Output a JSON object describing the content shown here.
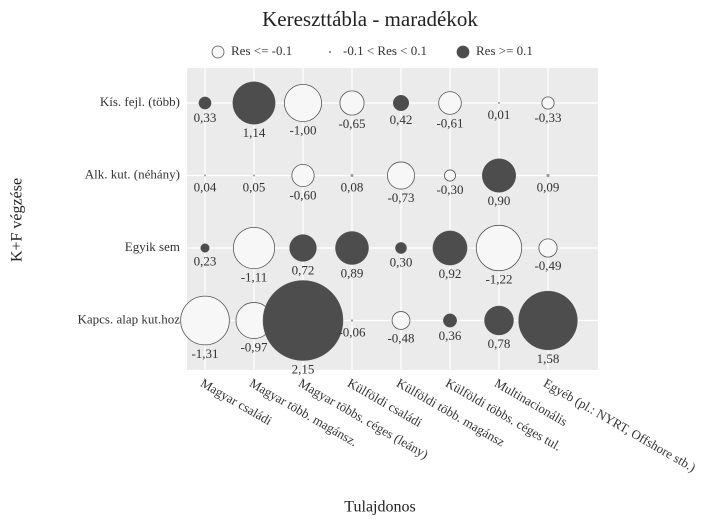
{
  "chart_data": {
    "type": "bubble",
    "title": "Kereszttábla - maradékok",
    "x_label": "Tulajdonos",
    "y_label": "K+F végzése",
    "categories": [
      "Magyar családi",
      "Magyar több. magánsz.",
      "Magyar többs. céges (leány)",
      "Külföldi családi",
      "Külföldi több. magánsz",
      "Külföldi többs. céges tul.",
      "Multinacionális",
      "Egyéb (pl.: NYRT, Offshore stb.)"
    ],
    "y_categories": [
      "Kís. fejl. (több)",
      "Alk. kut. (néhány)",
      "Egyik sem",
      "Kapcs. alap kut.hoz"
    ],
    "values": [
      [
        0.33,
        1.14,
        -1.0,
        -0.65,
        0.42,
        -0.61,
        0.01,
        -0.33
      ],
      [
        0.04,
        0.05,
        -0.6,
        0.08,
        -0.73,
        -0.3,
        0.9,
        0.09
      ],
      [
        0.23,
        -1.11,
        0.72,
        0.89,
        0.3,
        0.92,
        -1.22,
        -0.49
      ],
      [
        -1.31,
        -0.97,
        2.15,
        -0.06,
        -0.48,
        0.36,
        0.78,
        1.58
      ]
    ],
    "value_labels": [
      [
        "0,33",
        "1,14",
        "-1,00",
        "-0,65",
        "0,42",
        "-0,61",
        "0,01",
        "-0,33"
      ],
      [
        "0,04",
        "0,05",
        "-0,60",
        "0,08",
        "-0,73",
        "-0,30",
        "0,90",
        "0,09"
      ],
      [
        "0,23",
        "-1,11",
        "0,72",
        "0,89",
        "0,30",
        "0,92",
        "-1,22",
        "-0,49"
      ],
      [
        "-1,31",
        "-0,97",
        "2,15",
        "-0,06",
        "-0,48",
        "0,36",
        "0,78",
        "1,58"
      ]
    ],
    "thresholds": [
      -0.1,
      0.1
    ],
    "legend": [
      {
        "label": "Res <= -0.1",
        "color": "#f7f7f7"
      },
      {
        "label": "-0.1 < Res < 0.1",
        "color": "#999999"
      },
      {
        "label": "Res >= 0.1",
        "color": "#4d4d4d"
      }
    ],
    "grid": true
  }
}
